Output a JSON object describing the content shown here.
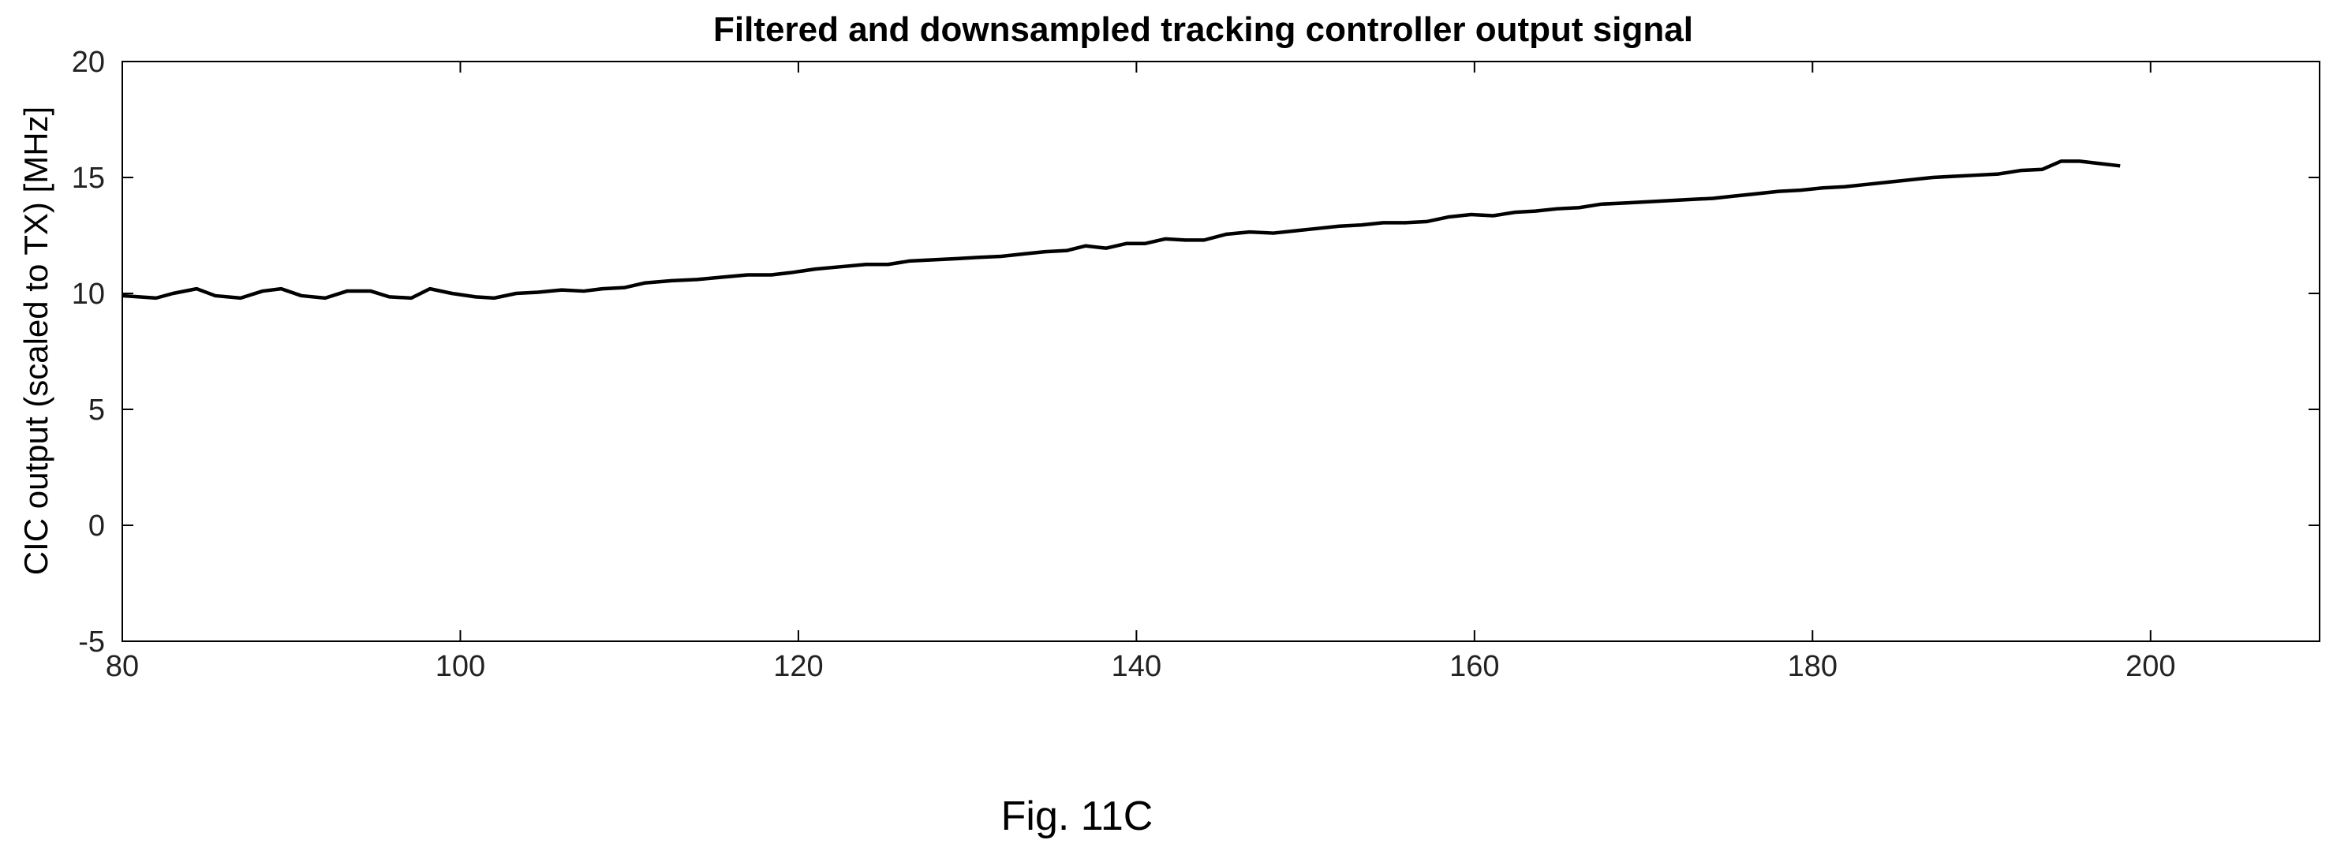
{
  "caption": "Fig. 11C",
  "chart_data": {
    "type": "line",
    "title": "Filtered and downsampled tracking controller output signal",
    "xlabel": "",
    "ylabel": "CIC output (scaled to TX) [MHz]",
    "xlim": [
      80,
      210
    ],
    "ylim": [
      -5,
      20
    ],
    "xticks": [
      80,
      100,
      120,
      140,
      160,
      180,
      200
    ],
    "yticks": [
      -5,
      0,
      5,
      10,
      15,
      20
    ],
    "grid": false,
    "series_color": "#000000",
    "x": [
      80,
      81,
      82,
      83,
      84.4,
      85.5,
      87,
      88.3,
      89.4,
      90.6,
      92,
      93.3,
      94.7,
      95.8,
      97.1,
      98.2,
      99.5,
      100.9,
      102,
      103.3,
      104.6,
      106,
      107.3,
      108.4,
      109.7,
      110.9,
      112.5,
      114,
      115.5,
      117,
      118.4,
      119.6,
      121,
      122.5,
      124,
      125.3,
      126.6,
      128,
      129.4,
      130.6,
      132,
      133.3,
      134.6,
      135.9,
      137,
      138.2,
      139.4,
      140.5,
      141.7,
      142.9,
      144,
      145.3,
      146.7,
      148.1,
      149.4,
      150.7,
      152,
      153.3,
      154.6,
      155.9,
      157.2,
      158.5,
      159.8,
      161.1,
      162.4,
      163.6,
      164.9,
      166.2,
      167.5,
      168.9,
      170.2,
      171.5,
      172.8,
      174.1,
      175.4,
      176.7,
      178,
      179.3,
      180.6,
      181.9,
      183.2,
      184.5,
      185.8,
      187.1,
      188.4,
      189.7,
      191,
      192.3,
      193.6,
      194.7,
      195.8,
      197,
      198.2
    ],
    "y": [
      9.9,
      9.85,
      9.8,
      10.0,
      10.2,
      9.9,
      9.8,
      10.1,
      10.2,
      9.9,
      9.8,
      10.1,
      10.1,
      9.85,
      9.8,
      10.2,
      10.0,
      9.85,
      9.8,
      10.0,
      10.05,
      10.15,
      10.1,
      10.2,
      10.25,
      10.45,
      10.55,
      10.6,
      10.7,
      10.8,
      10.8,
      10.9,
      11.05,
      11.15,
      11.25,
      11.25,
      11.4,
      11.45,
      11.5,
      11.55,
      11.6,
      11.7,
      11.8,
      11.85,
      12.05,
      11.95,
      12.15,
      12.15,
      12.35,
      12.3,
      12.3,
      12.55,
      12.65,
      12.6,
      12.7,
      12.8,
      12.9,
      12.95,
      13.05,
      13.05,
      13.1,
      13.3,
      13.4,
      13.35,
      13.5,
      13.55,
      13.65,
      13.7,
      13.85,
      13.9,
      13.95,
      14.0,
      14.05,
      14.1,
      14.2,
      14.3,
      14.4,
      14.45,
      14.55,
      14.6,
      14.7,
      14.8,
      14.9,
      15.0,
      15.05,
      15.1,
      15.15,
      15.3,
      15.35,
      15.7,
      15.7,
      15.6,
      15.5
    ]
  }
}
